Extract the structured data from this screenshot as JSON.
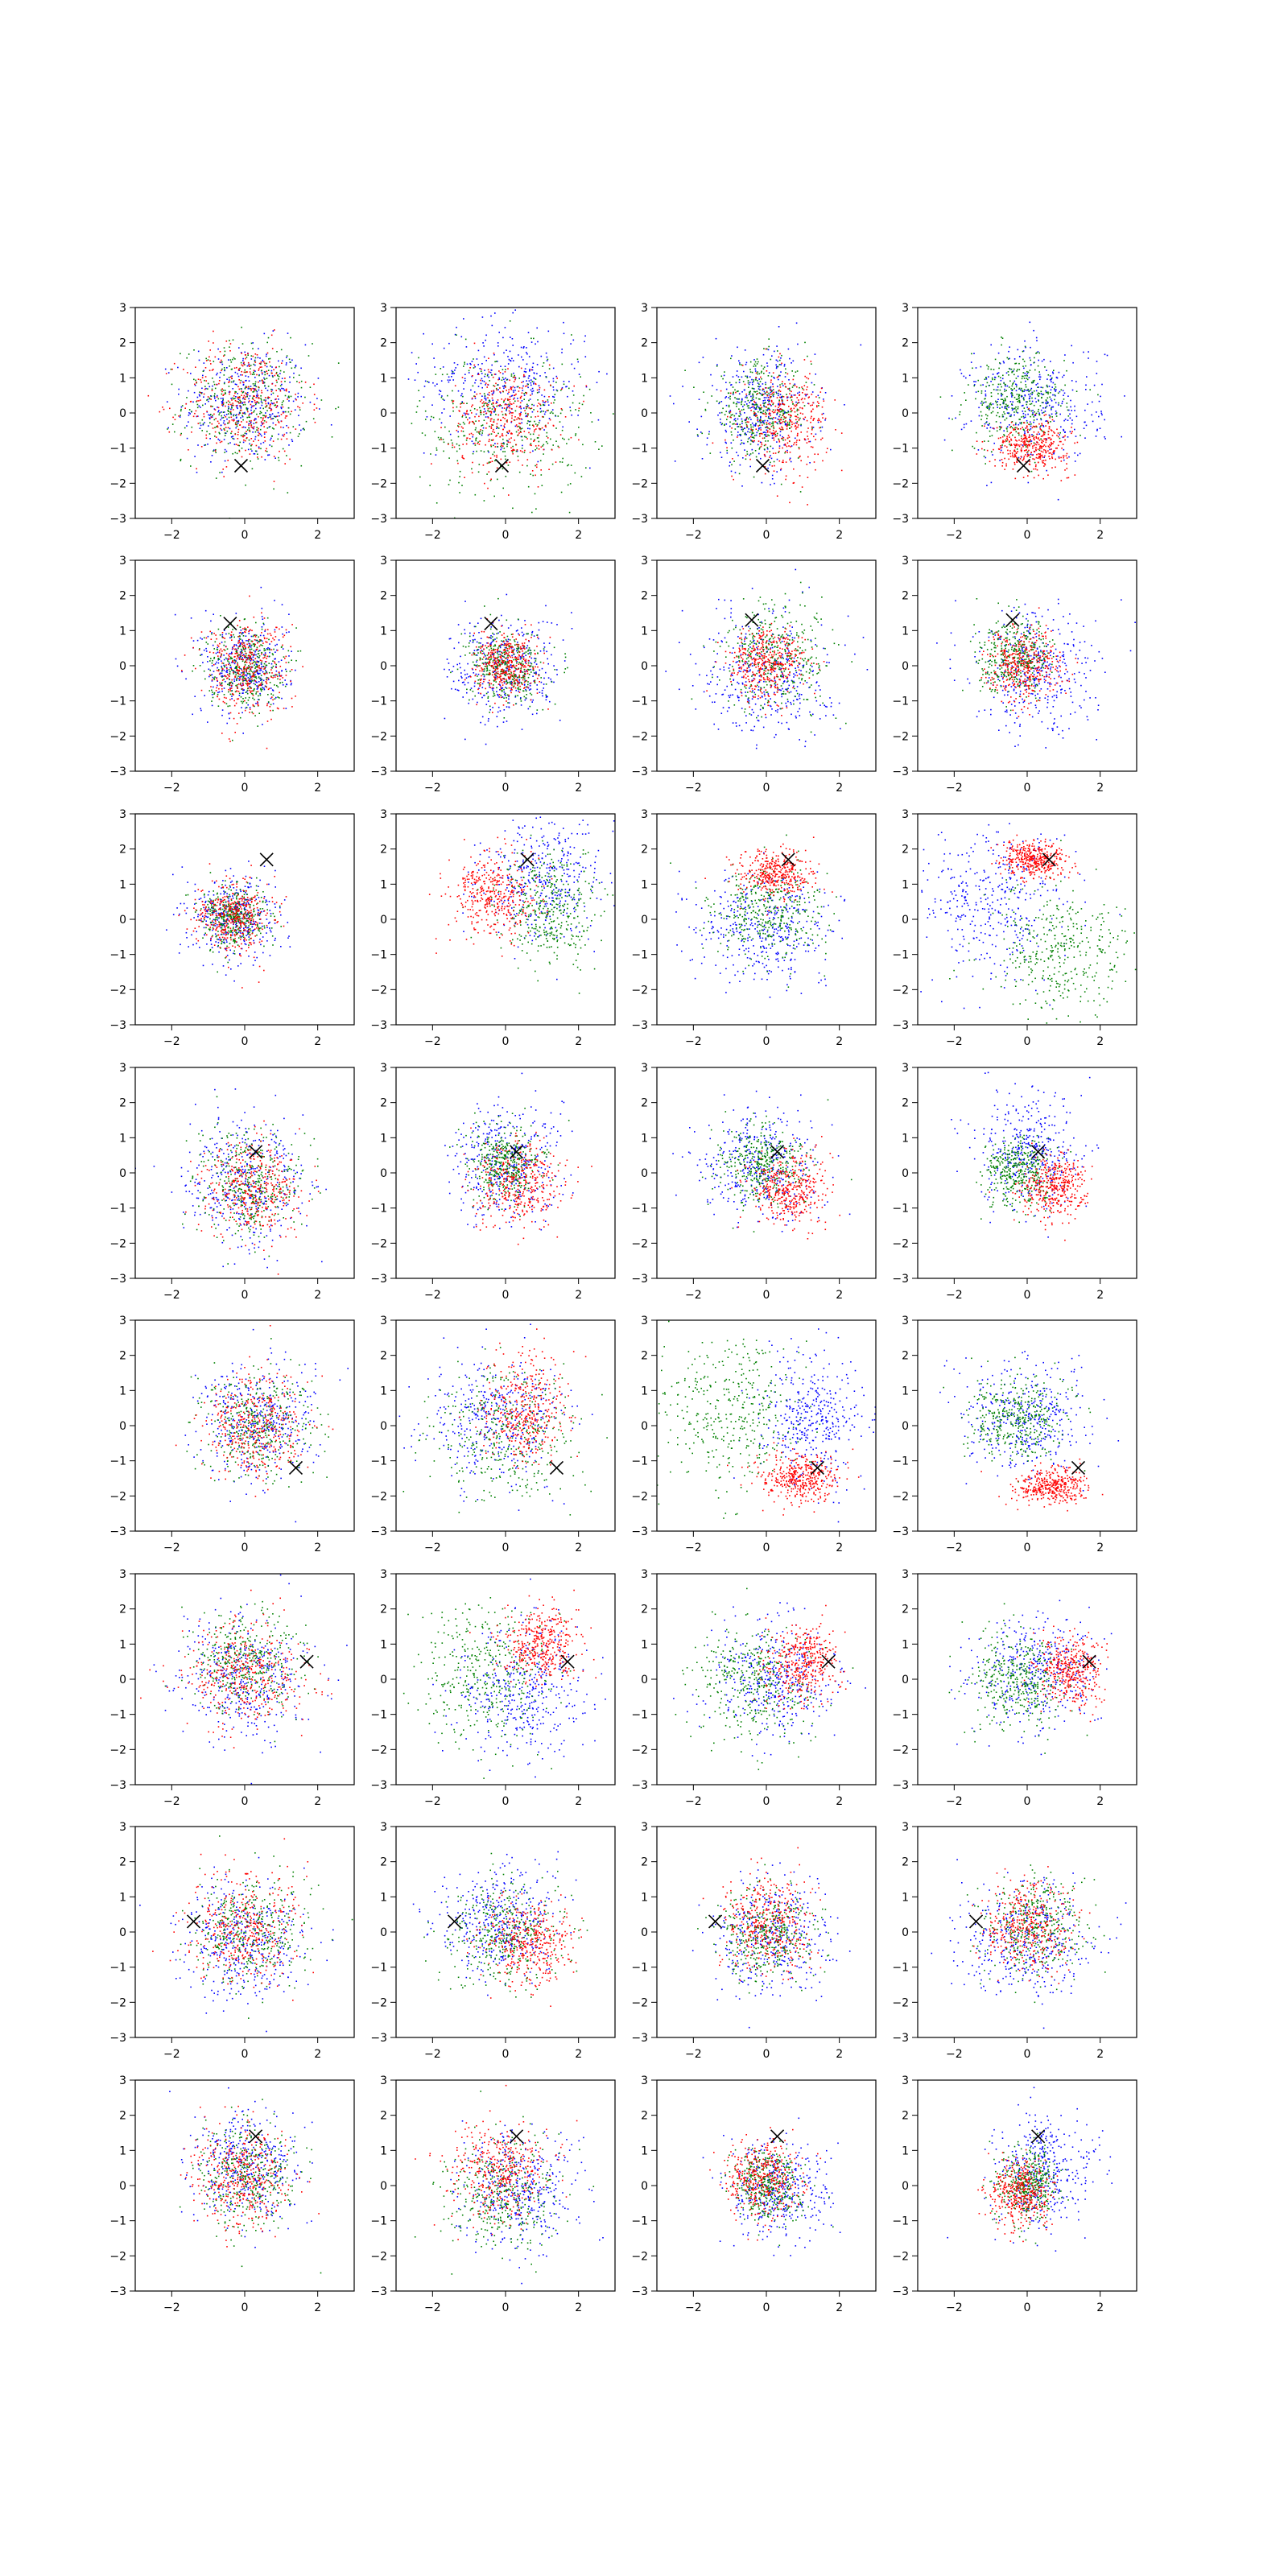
{
  "chart_data": {
    "type": "scatter",
    "layout": {
      "rows": 8,
      "cols": 4
    },
    "axes": {
      "xlim": [
        -3,
        3
      ],
      "ylim": [
        -3,
        3
      ],
      "xticks": [
        -2,
        0,
        2
      ],
      "yticks": [
        -3,
        -2,
        -1,
        0,
        1,
        2,
        3
      ],
      "grid": false
    },
    "series_colors": {
      "red": "#ff0000",
      "green": "#008000",
      "blue": "#0000ff"
    },
    "marker_color": "#000000",
    "points_per_series": 380,
    "panels": [
      {
        "marker": [
          -0.1,
          -1.5
        ],
        "series": [
          {
            "color": "blue",
            "cx": 0.0,
            "cy": 0.3,
            "sx": 1.0,
            "sy": 1.0
          },
          {
            "color": "green",
            "cx": 0.0,
            "cy": 0.3,
            "sx": 1.0,
            "sy": 1.0
          },
          {
            "color": "red",
            "cx": 0.0,
            "cy": 0.3,
            "sx": 1.0,
            "sy": 1.0
          }
        ]
      },
      {
        "marker": [
          -0.1,
          -1.5
        ],
        "series": [
          {
            "color": "blue",
            "cx": 0.0,
            "cy": 0.9,
            "sx": 1.3,
            "sy": 1.0
          },
          {
            "color": "green",
            "cx": 0.0,
            "cy": -0.3,
            "sx": 1.4,
            "sy": 1.2
          },
          {
            "color": "red",
            "cx": 0.0,
            "cy": -0.1,
            "sx": 0.9,
            "sy": 0.9
          }
        ]
      },
      {
        "marker": [
          -0.1,
          -1.5
        ],
        "series": [
          {
            "color": "blue",
            "cx": -0.2,
            "cy": 0.1,
            "sx": 0.9,
            "sy": 1.0
          },
          {
            "color": "green",
            "cx": -0.2,
            "cy": 0.1,
            "sx": 0.8,
            "sy": 0.8
          },
          {
            "color": "red",
            "cx": 0.5,
            "cy": -0.2,
            "sx": 0.7,
            "sy": 0.8
          }
        ]
      },
      {
        "marker": [
          -0.1,
          -1.5
        ],
        "series": [
          {
            "color": "blue",
            "cx": 0.2,
            "cy": 0.3,
            "sx": 1.1,
            "sy": 1.0
          },
          {
            "color": "green",
            "cx": -0.3,
            "cy": 0.3,
            "sx": 0.8,
            "sy": 0.8
          },
          {
            "color": "red",
            "cx": 0.1,
            "cy": -0.9,
            "sx": 0.6,
            "sy": 0.4
          }
        ]
      },
      {
        "marker": [
          -0.4,
          1.2
        ],
        "series": [
          {
            "color": "blue",
            "cx": 0.0,
            "cy": 0.0,
            "sx": 0.7,
            "sy": 0.8
          },
          {
            "color": "green",
            "cx": 0.0,
            "cy": 0.0,
            "sx": 0.6,
            "sy": 0.7
          },
          {
            "color": "red",
            "cx": 0.0,
            "cy": 0.0,
            "sx": 0.7,
            "sy": 0.8
          }
        ]
      },
      {
        "marker": [
          -0.4,
          1.2
        ],
        "series": [
          {
            "color": "blue",
            "cx": 0.0,
            "cy": -0.1,
            "sx": 0.9,
            "sy": 0.9
          },
          {
            "color": "green",
            "cx": 0.0,
            "cy": 0.0,
            "sx": 0.6,
            "sy": 0.6
          },
          {
            "color": "red",
            "cx": 0.0,
            "cy": 0.0,
            "sx": 0.5,
            "sy": 0.5
          }
        ]
      },
      {
        "marker": [
          -0.4,
          1.3
        ],
        "series": [
          {
            "color": "blue",
            "cx": 0.0,
            "cy": -0.2,
            "sx": 1.0,
            "sy": 1.1
          },
          {
            "color": "green",
            "cx": 0.3,
            "cy": 0.3,
            "sx": 0.9,
            "sy": 0.9
          },
          {
            "color": "red",
            "cx": 0.0,
            "cy": 0.1,
            "sx": 0.6,
            "sy": 0.6
          }
        ]
      },
      {
        "marker": [
          -0.4,
          1.3
        ],
        "series": [
          {
            "color": "blue",
            "cx": 0.2,
            "cy": -0.2,
            "sx": 1.0,
            "sy": 1.0
          },
          {
            "color": "green",
            "cx": -0.3,
            "cy": 0.3,
            "sx": 0.6,
            "sy": 0.6
          },
          {
            "color": "red",
            "cx": -0.1,
            "cy": 0.0,
            "sx": 0.6,
            "sy": 0.6
          }
        ]
      },
      {
        "marker": [
          0.6,
          1.7
        ],
        "series": [
          {
            "color": "blue",
            "cx": -0.3,
            "cy": 0.1,
            "sx": 0.7,
            "sy": 0.7
          },
          {
            "color": "green",
            "cx": -0.3,
            "cy": 0.1,
            "sx": 0.5,
            "sy": 0.5
          },
          {
            "color": "red",
            "cx": -0.3,
            "cy": 0.1,
            "sx": 0.6,
            "sy": 0.6
          }
        ]
      },
      {
        "marker": [
          0.6,
          1.7
        ],
        "series": [
          {
            "color": "blue",
            "cx": 1.0,
            "cy": 1.2,
            "sx": 1.0,
            "sy": 1.0
          },
          {
            "color": "green",
            "cx": 1.2,
            "cy": 0.3,
            "sx": 0.8,
            "sy": 0.9
          },
          {
            "color": "red",
            "cx": -0.4,
            "cy": 0.7,
            "sx": 0.7,
            "sy": 0.7
          }
        ]
      },
      {
        "marker": [
          0.6,
          1.7
        ],
        "series": [
          {
            "color": "blue",
            "cx": 0.0,
            "cy": -0.2,
            "sx": 1.1,
            "sy": 0.9
          },
          {
            "color": "green",
            "cx": 0.0,
            "cy": 0.2,
            "sx": 0.9,
            "sy": 0.8
          },
          {
            "color": "red",
            "cx": 0.2,
            "cy": 1.3,
            "sx": 0.6,
            "sy": 0.4
          }
        ]
      },
      {
        "marker": [
          0.6,
          1.7
        ],
        "series": [
          {
            "color": "blue",
            "cx": -0.9,
            "cy": 0.5,
            "sx": 1.2,
            "sy": 1.3
          },
          {
            "color": "green",
            "cx": 0.9,
            "cy": -0.9,
            "sx": 1.2,
            "sy": 1.1
          },
          {
            "color": "red",
            "cx": 0.2,
            "cy": 1.7,
            "sx": 0.5,
            "sy": 0.3
          }
        ]
      },
      {
        "marker": [
          0.3,
          0.6
        ],
        "series": [
          {
            "color": "blue",
            "cx": 0.0,
            "cy": -0.2,
            "sx": 1.0,
            "sy": 1.0
          },
          {
            "color": "green",
            "cx": 0.1,
            "cy": -0.3,
            "sx": 0.8,
            "sy": 0.9
          },
          {
            "color": "red",
            "cx": 0.2,
            "cy": -0.4,
            "sx": 0.8,
            "sy": 0.8
          }
        ]
      },
      {
        "marker": [
          0.3,
          0.6
        ],
        "series": [
          {
            "color": "blue",
            "cx": 0.0,
            "cy": 0.3,
            "sx": 0.9,
            "sy": 1.0
          },
          {
            "color": "green",
            "cx": 0.0,
            "cy": 0.3,
            "sx": 0.6,
            "sy": 0.6
          },
          {
            "color": "red",
            "cx": 0.3,
            "cy": -0.3,
            "sx": 0.7,
            "sy": 0.7
          }
        ]
      },
      {
        "marker": [
          0.3,
          0.6
        ],
        "series": [
          {
            "color": "blue",
            "cx": -0.2,
            "cy": 0.3,
            "sx": 1.0,
            "sy": 0.9
          },
          {
            "color": "green",
            "cx": -0.2,
            "cy": 0.2,
            "sx": 0.7,
            "sy": 0.7
          },
          {
            "color": "red",
            "cx": 0.6,
            "cy": -0.4,
            "sx": 0.6,
            "sy": 0.6
          }
        ]
      },
      {
        "marker": [
          0.3,
          0.6
        ],
        "series": [
          {
            "color": "blue",
            "cx": 0.0,
            "cy": 0.6,
            "sx": 0.8,
            "sy": 1.0
          },
          {
            "color": "green",
            "cx": -0.2,
            "cy": 0.0,
            "sx": 0.6,
            "sy": 0.6
          },
          {
            "color": "red",
            "cx": 0.7,
            "cy": -0.4,
            "sx": 0.5,
            "sy": 0.5
          }
        ]
      },
      {
        "marker": [
          1.4,
          -1.2
        ],
        "series": [
          {
            "color": "blue",
            "cx": 0.3,
            "cy": 0.1,
            "sx": 0.9,
            "sy": 1.0
          },
          {
            "color": "green",
            "cx": 0.3,
            "cy": 0.0,
            "sx": 0.9,
            "sy": 0.9
          },
          {
            "color": "red",
            "cx": 0.3,
            "cy": 0.0,
            "sx": 0.8,
            "sy": 0.9
          }
        ]
      },
      {
        "marker": [
          1.4,
          -1.2
        ],
        "series": [
          {
            "color": "blue",
            "cx": -0.3,
            "cy": 0.2,
            "sx": 1.1,
            "sy": 1.0
          },
          {
            "color": "green",
            "cx": 0.0,
            "cy": -0.2,
            "sx": 1.1,
            "sy": 1.1
          },
          {
            "color": "red",
            "cx": 0.5,
            "cy": 0.5,
            "sx": 0.7,
            "sy": 0.9
          }
        ]
      },
      {
        "marker": [
          1.4,
          -1.2
        ],
        "series": [
          {
            "color": "blue",
            "cx": 1.3,
            "cy": 0.2,
            "sx": 0.9,
            "sy": 1.1
          },
          {
            "color": "green",
            "cx": -1.0,
            "cy": 0.5,
            "sx": 1.1,
            "sy": 1.2
          },
          {
            "color": "red",
            "cx": 0.9,
            "cy": -1.5,
            "sx": 0.6,
            "sy": 0.4
          }
        ]
      },
      {
        "marker": [
          1.4,
          -1.2
        ],
        "series": [
          {
            "color": "blue",
            "cx": 0.0,
            "cy": 0.3,
            "sx": 1.0,
            "sy": 0.9
          },
          {
            "color": "green",
            "cx": -0.3,
            "cy": 0.2,
            "sx": 0.8,
            "sy": 0.7
          },
          {
            "color": "red",
            "cx": 0.6,
            "cy": -1.7,
            "sx": 0.6,
            "sy": 0.3
          }
        ]
      },
      {
        "marker": [
          1.7,
          0.5
        ],
        "series": [
          {
            "color": "blue",
            "cx": 0.0,
            "cy": 0.0,
            "sx": 1.0,
            "sy": 1.0
          },
          {
            "color": "green",
            "cx": 0.0,
            "cy": 0.5,
            "sx": 0.9,
            "sy": 0.9
          },
          {
            "color": "red",
            "cx": 0.0,
            "cy": 0.2,
            "sx": 0.9,
            "sy": 0.9
          }
        ]
      },
      {
        "marker": [
          1.7,
          0.5
        ],
        "series": [
          {
            "color": "blue",
            "cx": 0.5,
            "cy": -0.5,
            "sx": 1.0,
            "sy": 1.1
          },
          {
            "color": "green",
            "cx": -0.6,
            "cy": 0.0,
            "sx": 1.1,
            "sy": 1.1
          },
          {
            "color": "red",
            "cx": 1.0,
            "cy": 1.0,
            "sx": 0.6,
            "sy": 0.6
          }
        ]
      },
      {
        "marker": [
          1.7,
          0.5
        ],
        "series": [
          {
            "color": "blue",
            "cx": 0.3,
            "cy": 0.0,
            "sx": 1.0,
            "sy": 1.0
          },
          {
            "color": "green",
            "cx": -0.3,
            "cy": -0.1,
            "sx": 1.0,
            "sy": 1.0
          },
          {
            "color": "red",
            "cx": 1.0,
            "cy": 0.5,
            "sx": 0.6,
            "sy": 0.6
          }
        ]
      },
      {
        "marker": [
          1.7,
          0.5
        ],
        "series": [
          {
            "color": "blue",
            "cx": 0.2,
            "cy": 0.2,
            "sx": 1.0,
            "sy": 1.0
          },
          {
            "color": "green",
            "cx": -0.3,
            "cy": 0.0,
            "sx": 0.8,
            "sy": 0.8
          },
          {
            "color": "red",
            "cx": 1.2,
            "cy": 0.3,
            "sx": 0.5,
            "sy": 0.6
          }
        ]
      },
      {
        "marker": [
          -1.4,
          0.3
        ],
        "series": [
          {
            "color": "blue",
            "cx": 0.0,
            "cy": -0.2,
            "sx": 1.0,
            "sy": 1.0
          },
          {
            "color": "green",
            "cx": 0.2,
            "cy": 0.1,
            "sx": 1.0,
            "sy": 0.9
          },
          {
            "color": "red",
            "cx": -0.1,
            "cy": 0.0,
            "sx": 0.9,
            "sy": 0.9
          }
        ]
      },
      {
        "marker": [
          -1.4,
          0.3
        ],
        "series": [
          {
            "color": "blue",
            "cx": -0.2,
            "cy": 0.3,
            "sx": 1.0,
            "sy": 0.9
          },
          {
            "color": "green",
            "cx": 0.0,
            "cy": 0.0,
            "sx": 0.9,
            "sy": 0.9
          },
          {
            "color": "red",
            "cx": 0.6,
            "cy": -0.3,
            "sx": 0.7,
            "sy": 0.7
          }
        ]
      },
      {
        "marker": [
          -1.4,
          0.3
        ],
        "series": [
          {
            "color": "blue",
            "cx": 0.2,
            "cy": -0.1,
            "sx": 1.0,
            "sy": 0.9
          },
          {
            "color": "green",
            "cx": 0.0,
            "cy": 0.0,
            "sx": 0.7,
            "sy": 0.7
          },
          {
            "color": "red",
            "cx": 0.0,
            "cy": 0.3,
            "sx": 0.7,
            "sy": 0.8
          }
        ]
      },
      {
        "marker": [
          -1.4,
          0.3
        ],
        "series": [
          {
            "color": "blue",
            "cx": 0.0,
            "cy": -0.2,
            "sx": 1.1,
            "sy": 1.0
          },
          {
            "color": "green",
            "cx": 0.2,
            "cy": 0.2,
            "sx": 0.8,
            "sy": 0.8
          },
          {
            "color": "red",
            "cx": 0.0,
            "cy": 0.2,
            "sx": 0.7,
            "sy": 0.7
          }
        ]
      },
      {
        "marker": [
          0.3,
          1.4
        ],
        "series": [
          {
            "color": "blue",
            "cx": 0.0,
            "cy": 0.5,
            "sx": 0.9,
            "sy": 0.9
          },
          {
            "color": "green",
            "cx": 0.0,
            "cy": 0.3,
            "sx": 0.8,
            "sy": 0.9
          },
          {
            "color": "red",
            "cx": -0.1,
            "cy": 0.2,
            "sx": 0.8,
            "sy": 0.8
          }
        ]
      },
      {
        "marker": [
          0.3,
          1.4
        ],
        "series": [
          {
            "color": "blue",
            "cx": 0.4,
            "cy": -0.2,
            "sx": 0.9,
            "sy": 0.9
          },
          {
            "color": "green",
            "cx": -0.1,
            "cy": -0.3,
            "sx": 0.9,
            "sy": 0.9
          },
          {
            "color": "red",
            "cx": -0.2,
            "cy": 0.4,
            "sx": 0.8,
            "sy": 0.8
          }
        ]
      },
      {
        "marker": [
          0.3,
          1.4
        ],
        "series": [
          {
            "color": "blue",
            "cx": 0.3,
            "cy": -0.1,
            "sx": 0.8,
            "sy": 0.8
          },
          {
            "color": "green",
            "cx": 0.0,
            "cy": 0.0,
            "sx": 0.6,
            "sy": 0.6
          },
          {
            "color": "red",
            "cx": -0.1,
            "cy": 0.2,
            "sx": 0.6,
            "sy": 0.7
          }
        ]
      },
      {
        "marker": [
          0.3,
          1.4
        ],
        "series": [
          {
            "color": "blue",
            "cx": 0.4,
            "cy": 0.4,
            "sx": 0.8,
            "sy": 0.9
          },
          {
            "color": "green",
            "cx": 0.0,
            "cy": 0.0,
            "sx": 0.5,
            "sy": 0.6
          },
          {
            "color": "red",
            "cx": -0.2,
            "cy": -0.2,
            "sx": 0.5,
            "sy": 0.6
          }
        ]
      }
    ]
  }
}
